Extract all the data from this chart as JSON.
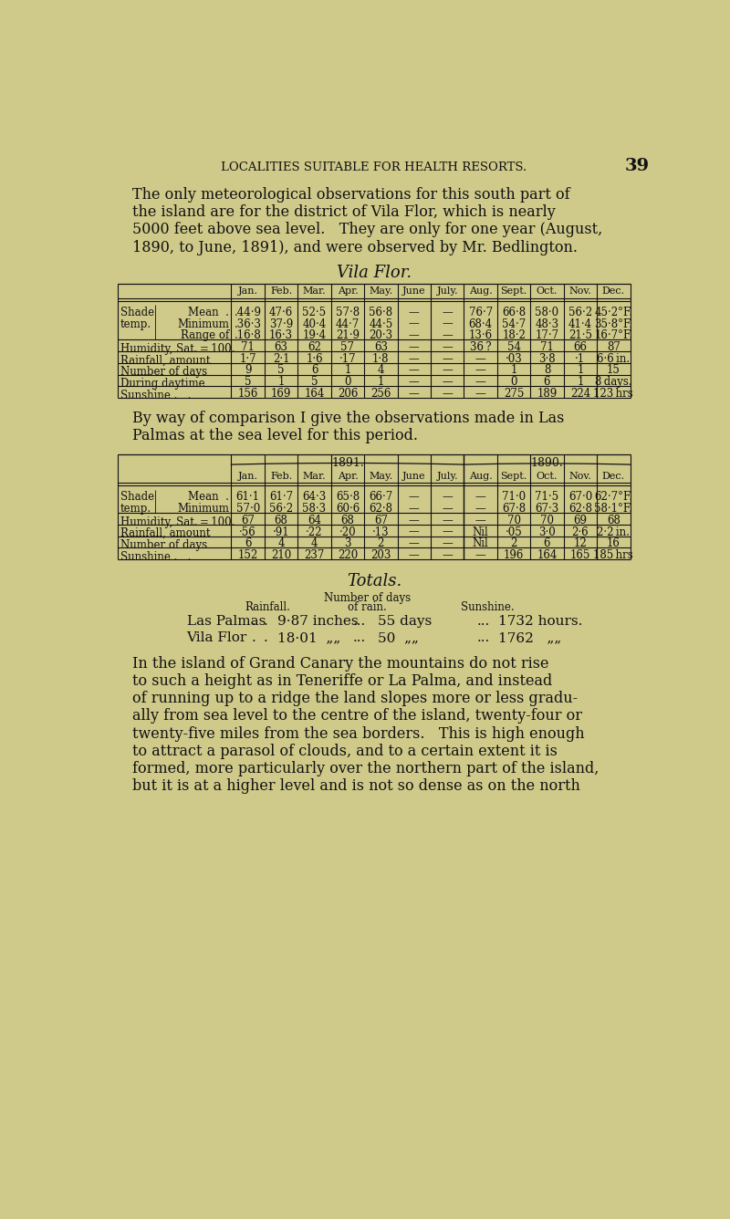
{
  "bg_color": "#cfc98a",
  "text_color": "#111111",
  "page_header": "LOCALITIES SUITABLE FOR HEALTH RESORTS.",
  "page_number": "39",
  "intro_text": [
    "The only meteorological observations for this south part of",
    "the island are for the district of Vila Flor, which is nearly",
    "5000 feet above sea level.   They are only for one year (August,",
    "1890, to June, 1891), and were observed by Mr. Bedlington."
  ],
  "vila_flor_title": "Vila Flor.",
  "vf_col_headers": [
    "Jan.",
    "Feb.",
    "Mar.",
    "Apr.",
    "May.",
    "June",
    "July.",
    "Aug.",
    "Sept.",
    "Oct.",
    "Nov.",
    "Dec."
  ],
  "vf_row_data": [
    {
      "main_label": "Shade",
      "sub_label": "temp.",
      "has_brace": true,
      "subrows": [
        {
          "name": "Mean  .",
          "vals": [
            ".44·9",
            "47·6",
            "52·5",
            "57·8",
            "56·8",
            "—",
            "—",
            "76·7",
            "66·8",
            "58·0",
            "56·2",
            "45·2°F."
          ]
        },
        {
          "name": "Minimum",
          "vals": [
            ".36·3",
            "37·9",
            "40·4",
            "44·7",
            "44·5",
            "—",
            "—",
            "68·4",
            "54·7",
            "48·3",
            "41·4",
            "35·8°F."
          ]
        },
        {
          "name": "Range of",
          "vals": [
            ".16·8",
            "16·3",
            "19·4",
            "21·9",
            "20·3",
            "—",
            "—",
            "13·6",
            "18·2",
            "17·7",
            "21·5",
            "16·7°F."
          ]
        }
      ]
    },
    {
      "main_label": "Humidity, Sat. = 100.",
      "has_brace": false,
      "subrows": [
        {
          "name": "",
          "vals": [
            "71",
            "63",
            "62",
            "57",
            "63",
            "—",
            "—",
            "36 ?",
            "54",
            "71",
            "66",
            "87"
          ]
        }
      ]
    },
    {
      "main_label": "Rainfall, amount",
      "has_brace": false,
      "subrows": [
        {
          "name": "",
          "vals": [
            "1·7",
            "2·1",
            "1·6",
            "·17",
            "1·8",
            "—",
            "—",
            "—",
            "·03",
            "3·8",
            "·1",
            "6·6 in."
          ]
        }
      ]
    },
    {
      "main_label": "Number of days",
      "has_brace": false,
      "subrows": [
        {
          "name": "",
          "vals": [
            "9",
            "5",
            "6",
            "1",
            "4",
            "—",
            "—",
            "—",
            "1",
            "8",
            "1",
            "15"
          ]
        }
      ]
    },
    {
      "main_label": "During daytime",
      "has_brace": false,
      "subrows": [
        {
          "name": "",
          "vals": [
            "5",
            "1",
            "5",
            "0",
            "1",
            "—",
            "—",
            "—",
            "0",
            "6",
            "1",
            "8 days."
          ]
        }
      ]
    },
    {
      "main_label": "Sunshine .   .",
      "has_brace": false,
      "subrows": [
        {
          "name": "",
          "vals": [
            "156",
            "169",
            "164",
            "206",
            "256",
            "—",
            "—",
            "—",
            "275",
            "189",
            "224",
            "123 hrs"
          ]
        }
      ]
    }
  ],
  "comparison_text": [
    "By way of comparison I give the observations made in Las",
    "Palmas at the sea level for this period."
  ],
  "lp_year1": "1891.",
  "lp_year2": "1890.",
  "lp_col_headers": [
    "Jan.",
    "Feb.",
    "Mar.",
    "Apr.",
    "May.",
    "June",
    "July.",
    "Aug.",
    "Sept.",
    "Oct.",
    "Nov.",
    "Dec."
  ],
  "lp_row_data": [
    {
      "main_label": "Shade",
      "sub_label": "temp.",
      "has_brace": true,
      "subrows": [
        {
          "name": "Mean  .",
          "vals": [
            "61·1",
            "61·7",
            "64·3",
            "65·8",
            "66·7",
            "—",
            "—",
            "—",
            "71·0",
            "71·5",
            "67·0",
            "62·7°F."
          ]
        },
        {
          "name": "Minimum",
          "vals": [
            "57·0",
            "56·2",
            "58·3",
            "60·6",
            "62·8",
            "—",
            "—",
            "—",
            "67·8",
            "67·3",
            "62·8",
            "58·1°F."
          ]
        }
      ]
    },
    {
      "main_label": "Humidity, Sat. = 100.",
      "has_brace": false,
      "subrows": [
        {
          "name": "",
          "vals": [
            "67",
            "68",
            "64",
            "68",
            "67",
            "—",
            "—",
            "—",
            "70",
            "70",
            "69",
            "68"
          ]
        }
      ]
    },
    {
      "main_label": "Rainfall, amount",
      "has_brace": false,
      "subrows": [
        {
          "name": "",
          "vals": [
            "·56",
            "·91",
            "·22",
            "·20",
            "·13",
            "—",
            "—",
            "Nil",
            "·05",
            "3·0",
            "2·6",
            "2·2 in."
          ]
        }
      ]
    },
    {
      "main_label": "Number of days",
      "has_brace": false,
      "subrows": [
        {
          "name": "",
          "vals": [
            "6",
            "4",
            "4",
            "3",
            "2",
            "—",
            "—",
            "Nil",
            "2",
            "6",
            "12",
            "16"
          ]
        }
      ]
    },
    {
      "main_label": "Sunshine .   .",
      "has_brace": false,
      "subrows": [
        {
          "name": "",
          "vals": [
            "152",
            "210",
            "237",
            "220",
            "203",
            "—",
            "—",
            "—",
            "196",
            "164",
            "165",
            "185 hrs"
          ]
        }
      ]
    }
  ],
  "totals_title": "Totals.",
  "totals_col1_header": "Rainfall.",
  "totals_col2_header": "Number of days\nof rain.",
  "totals_col3_header": "Sunshine.",
  "totals_rows": [
    [
      "Las Palmas",
      ".",
      "9·87 inches",
      "...",
      "55 days",
      "...",
      "1732 hours."
    ],
    [
      "Vila Flor",
      ".",
      "18·01  „„",
      "...",
      "50  „„",
      "...",
      "1762   „„"
    ]
  ],
  "closing_text": [
    "In the island of Grand Canary the mountains do not rise",
    "to such a height as in Teneriffe or La Palma, and instead",
    "of running up to a ridge the land slopes more or less gradu-",
    "ally from sea level to the centre of the island, twenty-four or",
    "twenty-five miles from the sea borders.   This is high enough",
    "to attract a parasol of clouds, and to a certain extent it is",
    "formed, more particularly over the northern part of the island,",
    "but it is at a higher level and is not so dense as on the north"
  ]
}
